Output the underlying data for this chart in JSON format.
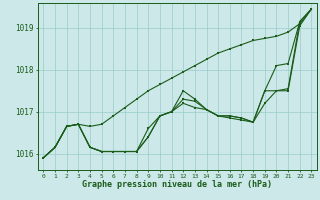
{
  "xlabel": "Graphe pression niveau de la mer (hPa)",
  "background_color": "#cce8e8",
  "grid_color": "#99cccc",
  "line_color": "#1a5c1a",
  "x": [
    0,
    1,
    2,
    3,
    4,
    5,
    6,
    7,
    8,
    9,
    10,
    11,
    12,
    13,
    14,
    15,
    16,
    17,
    18,
    19,
    20,
    21,
    22,
    23
  ],
  "line1": [
    1015.9,
    1016.15,
    1016.65,
    1016.7,
    1016.65,
    1016.7,
    1016.9,
    1017.1,
    1017.3,
    1017.5,
    1017.65,
    1017.8,
    1017.95,
    1018.1,
    1018.25,
    1018.4,
    1018.5,
    1018.6,
    1018.7,
    1018.75,
    1018.8,
    1018.9,
    1019.1,
    1019.45
  ],
  "line2": [
    1015.9,
    1016.15,
    1016.65,
    1016.7,
    1016.15,
    1016.05,
    1016.05,
    1016.05,
    1016.05,
    1016.6,
    1016.9,
    1017.0,
    1017.5,
    1017.3,
    1017.05,
    1016.9,
    1016.9,
    1016.85,
    1016.75,
    1017.5,
    1018.1,
    1018.15,
    1019.15,
    1019.45
  ],
  "line3": [
    1015.9,
    1016.15,
    1016.65,
    1016.7,
    1016.15,
    1016.05,
    1016.05,
    1016.05,
    1016.05,
    1016.4,
    1016.9,
    1017.0,
    1017.3,
    1017.25,
    1017.05,
    1016.9,
    1016.9,
    1016.85,
    1016.75,
    1017.5,
    1017.5,
    1017.55,
    1019.15,
    1019.45
  ],
  "line4": [
    1015.9,
    1016.15,
    1016.65,
    1016.7,
    1016.15,
    1016.05,
    1016.05,
    1016.05,
    1016.05,
    1016.4,
    1016.9,
    1017.0,
    1017.2,
    1017.1,
    1017.05,
    1016.9,
    1016.85,
    1016.8,
    1016.75,
    1017.2,
    1017.5,
    1017.5,
    1019.05,
    1019.45
  ],
  "ylim": [
    1015.6,
    1019.6
  ],
  "yticks": [
    1016,
    1017,
    1018,
    1019
  ],
  "xticks": [
    0,
    1,
    2,
    3,
    4,
    5,
    6,
    7,
    8,
    9,
    10,
    11,
    12,
    13,
    14,
    15,
    16,
    17,
    18,
    19,
    20,
    21,
    22,
    23
  ]
}
